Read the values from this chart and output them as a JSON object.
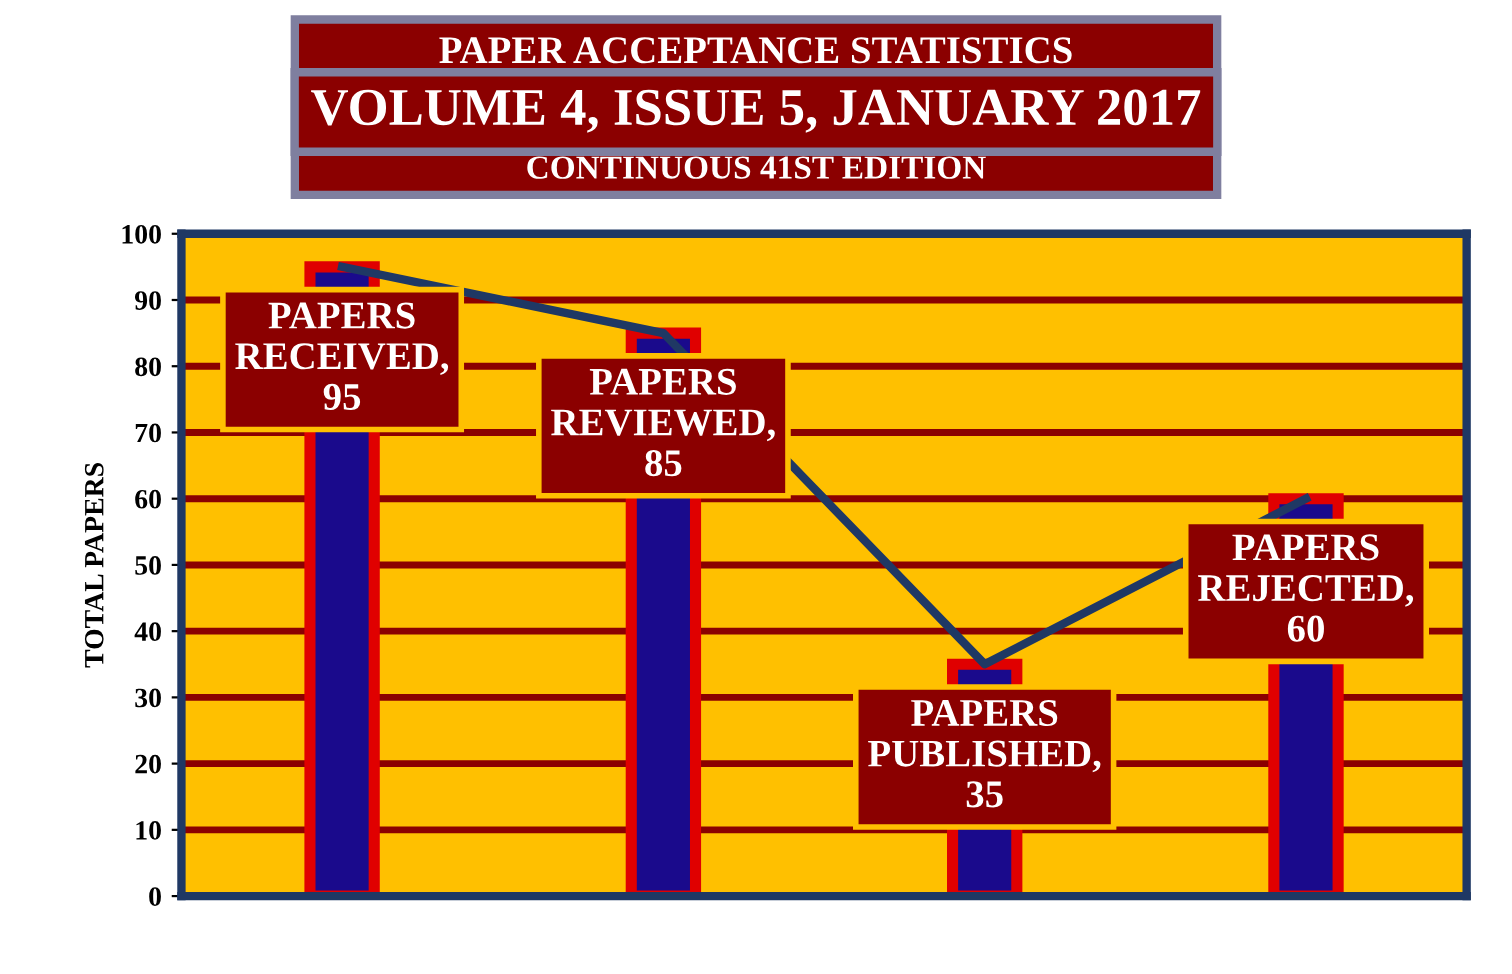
{
  "chart_data": {
    "type": "bar",
    "title": "PAPER ACCEPTANCE STATISTICS",
    "subtitle": "VOLUME 4, ISSUE 5, JANUARY 2017",
    "annotations": [
      "CONTINUOUS 41ST EDITION"
    ],
    "ylabel": "TOTAL PAPERS",
    "categories": [
      null,
      null,
      null,
      null
    ],
    "series": [
      {
        "color": "#1a0a8c",
        "values": [
          95,
          85,
          35,
          60
        ],
        "value_labels": [
          "PAPERS\nRECEIVED,\n95",
          "PAPERS\nREVIEWED,\n85",
          "PAPERS\nPUBLISHED,\n35",
          "PAPERS\nREJECTED,\n60"
        ]
      },
      {
        "type": "line",
        "color": "#1f3864",
        "values": [
          95,
          85,
          35,
          60
        ]
      }
    ],
    "ylim": [
      0,
      100
    ],
    "yticks": [
      0,
      10,
      20,
      30,
      40,
      50,
      60,
      70,
      80,
      90,
      100
    ],
    "grid": "y",
    "legend": false
  }
}
